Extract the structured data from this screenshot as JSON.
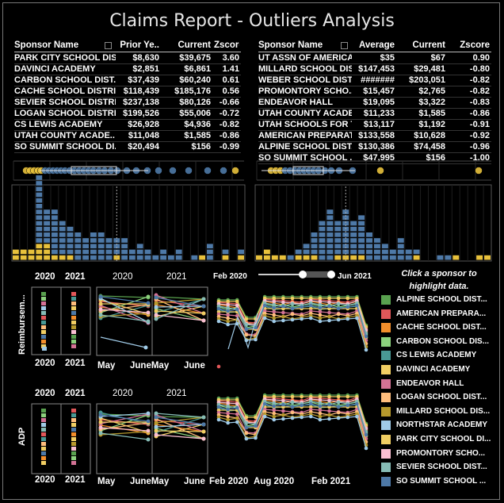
{
  "title": "Claims Report - Outliers Analysis",
  "left_table": {
    "headers": [
      "Sponsor Name",
      "Prior Ye..",
      "Current",
      "Zscore"
    ],
    "rows": [
      [
        "PARK CITY SCHOOL DIS..",
        "$8,630",
        "$39,675",
        "3.60"
      ],
      [
        "DAVINCI ACADEMY",
        "$2,851",
        "$6,861",
        "1.41"
      ],
      [
        "CARBON SCHOOL DIST..",
        "$37,439",
        "$60,240",
        "0.61"
      ],
      [
        "CACHE SCHOOL DISTRI..",
        "$118,439",
        "$185,176",
        "0.56"
      ],
      [
        "SEVIER SCHOOL DISTRI..",
        "$237,138",
        "$80,126",
        "-0.66"
      ],
      [
        "LOGAN SCHOOL DISTRI..",
        "$199,526",
        "$55,006",
        "-0.72"
      ],
      [
        "CS LEWIS ACADEMY",
        "$26,928",
        "$4,936",
        "-0.82"
      ],
      [
        "UTAH COUNTY ACADE..",
        "$11,048",
        "$1,585",
        "-0.86"
      ],
      [
        "SO SUMMIT SCHOOL DI..",
        "$20,494",
        "$156",
        "-0.99"
      ]
    ]
  },
  "right_table": {
    "headers": [
      "Sponsor Name",
      "Average",
      "Current",
      "Zscore"
    ],
    "rows": [
      [
        "UT ASSN OF AMERICA..",
        "$35",
        "$67",
        "0.90"
      ],
      [
        "MILLARD SCHOOL DIS..",
        "$147,453",
        "$29,481",
        "-0.80"
      ],
      [
        "WEBER SCHOOL DIST..",
        "#######",
        "$203,051",
        "-0.82"
      ],
      [
        "PROMONTORY SCHO..",
        "$15,457",
        "$2,765",
        "-0.82"
      ],
      [
        "ENDEAVOR HALL",
        "$19,095",
        "$3,322",
        "-0.83"
      ],
      [
        "UTAH COUNTY ACADE..",
        "$11,233",
        "$1,585",
        "-0.86"
      ],
      [
        "UTAH SCHOOLS FOR T..",
        "$13,117",
        "$1,192",
        "-0.91"
      ],
      [
        "AMERICAN PREPARAT..",
        "$133,558",
        "$10,628",
        "-0.92"
      ],
      [
        "ALPINE SCHOOL DIST..",
        "$130,386",
        "$74,458",
        "-0.96"
      ],
      [
        "SO SUMMIT SCHOOL ..",
        "$47,995",
        "$156",
        "-1.00"
      ]
    ]
  },
  "colors": {
    "blue": "#4e79a7",
    "gold": "#e8c13c",
    "grid": "#3a3a3a"
  },
  "chart_data": [
    {
      "type": "histogram",
      "panel": "left",
      "blue_counts": [
        0,
        0,
        0,
        12,
        6,
        8,
        6,
        5,
        5,
        4,
        5,
        5,
        4,
        3,
        4,
        2,
        3,
        2,
        1,
        2,
        1,
        2,
        0,
        1,
        0,
        3,
        0,
        1,
        0,
        1
      ],
      "gold_counts": [
        2,
        2,
        2,
        3,
        3,
        1,
        1,
        1,
        0,
        0,
        0,
        0,
        0,
        1,
        0,
        0,
        0,
        0,
        0,
        0,
        0,
        0,
        0,
        0,
        1,
        0,
        0,
        1,
        0,
        1
      ],
      "median_bin": 13.5
    },
    {
      "type": "histogram",
      "panel": "right",
      "blue_counts": [
        0,
        0,
        0,
        0,
        1,
        1,
        2,
        4,
        7,
        9,
        6,
        8,
        6,
        7,
        5,
        4,
        3,
        2,
        4,
        2,
        1,
        0,
        0,
        1,
        1,
        0,
        0,
        0,
        0,
        0
      ],
      "gold_counts": [
        1,
        2,
        1,
        1,
        0,
        1,
        1,
        1,
        0,
        0,
        1,
        1,
        1,
        1,
        0,
        0,
        0,
        0,
        0,
        0,
        1,
        0,
        0,
        0,
        0,
        1,
        0,
        0,
        1,
        1
      ],
      "median_bin": 11.5
    },
    {
      "type": "line",
      "panel": "bottom-time",
      "x_labels": [
        "Feb 2020",
        "Aug 2020",
        "Feb 2021"
      ],
      "slider_start": "Feb 2020",
      "slider_end": "Jun 2021"
    }
  ],
  "mini_labels": {
    "year_a": "2020",
    "year_b": "2021",
    "may": "May",
    "june_may": "JuneMay",
    "june": "June",
    "reimb": "Reimbursem...",
    "adp": "ADP"
  },
  "legend": {
    "hint": "Click a sponsor to highlight data.",
    "items": [
      {
        "label": "ALPINE SCHOOL DIST...",
        "color": "#59a14f"
      },
      {
        "label": "AMERICAN PREPARA...",
        "color": "#e15759"
      },
      {
        "label": "CACHE SCHOOL DIST...",
        "color": "#f28e2b"
      },
      {
        "label": "CARBON SCHOOL DIS...",
        "color": "#8cd17d"
      },
      {
        "label": "CS LEWIS ACADEMY",
        "color": "#499894"
      },
      {
        "label": "DAVINCI ACADEMY",
        "color": "#f1ce63"
      },
      {
        "label": "ENDEAVOR HALL",
        "color": "#d37295"
      },
      {
        "label": "LOGAN SCHOOL DIST...",
        "color": "#ffbe7d"
      },
      {
        "label": "MILLARD SCHOOL DIS...",
        "color": "#b6992d"
      },
      {
        "label": "NORTHSTAR ACADEMY",
        "color": "#a0cbe8"
      },
      {
        "label": "PARK CITY SCHOOL DI...",
        "color": "#f1ce63"
      },
      {
        "label": "PROMONTORY SCHO...",
        "color": "#fabfd2"
      },
      {
        "label": "SEVIER SCHOOL DIST...",
        "color": "#86bcb6"
      },
      {
        "label": "SO SUMMIT SCHOOL ...",
        "color": "#4e79a7"
      }
    ]
  }
}
